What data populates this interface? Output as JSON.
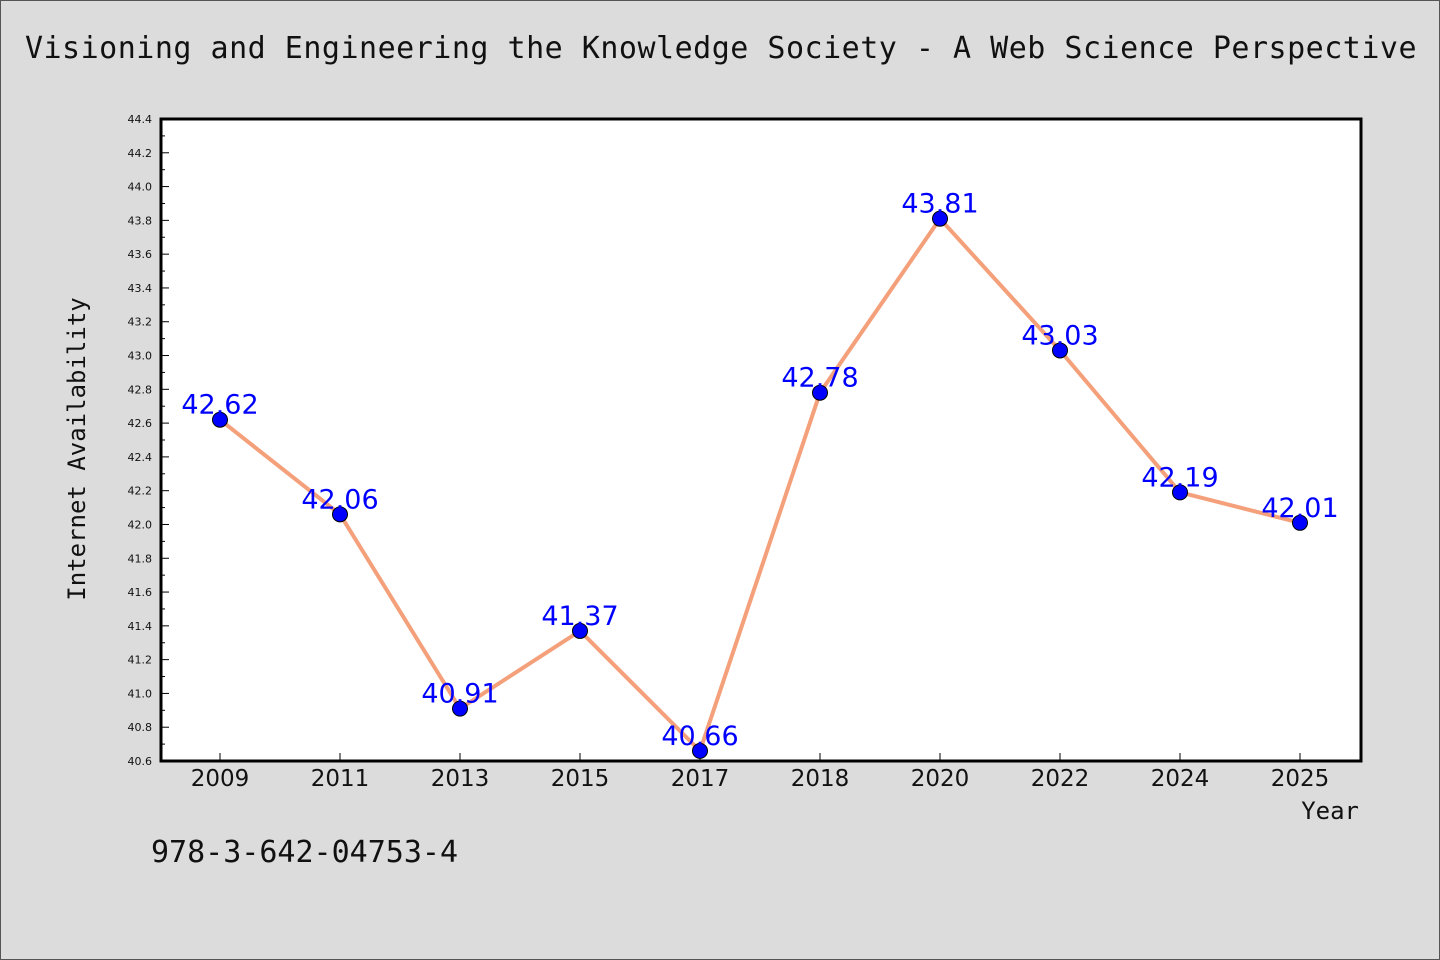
{
  "chart_data": {
    "type": "line",
    "title": "Visioning and Engineering the Knowledge Society - A Web Science Perspective",
    "xlabel": "Year",
    "ylabel": "Internet Availability",
    "footnote": "978-3-642-04753-4",
    "categories": [
      "2009",
      "2011",
      "2013",
      "2015",
      "2017",
      "2018",
      "2020",
      "2022",
      "2024",
      "2025"
    ],
    "series": [
      {
        "values": [
          42.62,
          42.06,
          40.91,
          41.37,
          40.66,
          42.78,
          43.81,
          43.03,
          42.19,
          42.01
        ],
        "line_color": "#f4a07a",
        "marker_color": "#0000ff"
      }
    ],
    "data_labels": [
      "42.62",
      "42.06",
      "40.91",
      "41.37",
      "40.66",
      "42.78",
      "43.81",
      "43.03",
      "42.19",
      "42.01"
    ],
    "ylim": [
      40.6,
      44.4
    ],
    "yticks": [
      "40.6",
      "40.8",
      "41.0",
      "41.2",
      "41.4",
      "41.6",
      "41.8",
      "42.0",
      "42.2",
      "42.4",
      "42.6",
      "42.8",
      "43.0",
      "43.2",
      "43.4",
      "43.6",
      "43.8",
      "44.0",
      "44.2",
      "44.4"
    ],
    "grid": false,
    "legend": "none",
    "label_color": "#0000ff"
  }
}
